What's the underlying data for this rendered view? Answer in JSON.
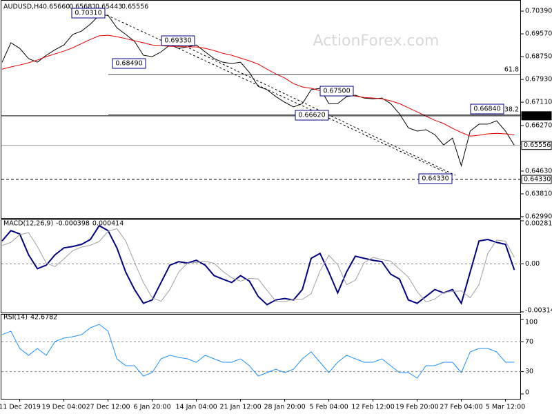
{
  "chart_data": [
    {
      "type": "line",
      "title": "AUDUSD,H4",
      "ohlc": [
        "0.65660",
        "0.65681",
        "0.65443",
        "0.65556"
      ],
      "watermark": "ActionForex.com",
      "ylim": [
        0.6294,
        0.7074
      ],
      "yticks": [
        {
          "value": 0.7039,
          "label": "0.70390"
        },
        {
          "value": 0.6957,
          "label": "0.69570"
        },
        {
          "value": 0.6875,
          "label": "0.68750"
        },
        {
          "value": 0.6793,
          "label": "0.67930"
        },
        {
          "value": 0.6711,
          "label": "0.67110"
        },
        {
          "value": 0.6627,
          "label": "0.66270"
        },
        {
          "value": 0.6463,
          "label": "0.64630"
        },
        {
          "value": 0.6381,
          "label": "0.63810"
        },
        {
          "value": 0.6299,
          "label": "0.62990"
        }
      ],
      "levels": [
        {
          "value": 0.6662,
          "label": "0.66620"
        },
        {
          "value": 0.65556,
          "label": "0.65556"
        },
        {
          "value": 0.6433,
          "label": "0.64330"
        }
      ],
      "fib": [
        {
          "value": 0.6811,
          "label": "61.8"
        },
        {
          "value": 0.6666,
          "label": "38.2"
        }
      ],
      "annotations": [
        "0.70310",
        "0.68490",
        "0.69330",
        "0.66620",
        "0.67500",
        "0.64330",
        "0.66840"
      ],
      "series": [
        {
          "color": "#000000",
          "values": [
            0.6855,
            0.6925,
            0.6905,
            0.6868,
            0.6855,
            0.688,
            0.69,
            0.6917,
            0.6955,
            0.6967,
            0.6992,
            0.7024,
            0.7024,
            0.6979,
            0.6955,
            0.693,
            0.688,
            0.6875,
            0.6892,
            0.6917,
            0.6905,
            0.691,
            0.6917,
            0.6892,
            0.6868,
            0.6855,
            0.685,
            0.6855,
            0.6818,
            0.6768,
            0.6756,
            0.6731,
            0.6711,
            0.6694,
            0.6706,
            0.6756,
            0.6761,
            0.6706,
            0.6706,
            0.6731,
            0.6736,
            0.6726,
            0.6723,
            0.6726,
            0.6706,
            0.6669,
            0.6619,
            0.6607,
            0.6612,
            0.6594,
            0.6557,
            0.6582,
            0.6482,
            0.6607,
            0.6632,
            0.6632,
            0.6644,
            0.6607,
            0.65556
          ]
        },
        {
          "color": "#e00000",
          "values": [
            0.683,
            0.6838,
            0.6845,
            0.6853,
            0.6863,
            0.6875,
            0.6885,
            0.6895,
            0.6907,
            0.6922,
            0.6937,
            0.695,
            0.6952,
            0.6947,
            0.694,
            0.6932,
            0.6925,
            0.6917,
            0.6915,
            0.6912,
            0.6912,
            0.691,
            0.691,
            0.6905,
            0.6897,
            0.6887,
            0.688,
            0.687,
            0.686,
            0.6848,
            0.683,
            0.6813,
            0.6798,
            0.6778,
            0.6766,
            0.6761,
            0.6753,
            0.6748,
            0.6743,
            0.6738,
            0.6733,
            0.6728,
            0.6726,
            0.6723,
            0.6716,
            0.6706,
            0.6691,
            0.6676,
            0.6661,
            0.6646,
            0.6634,
            0.6617,
            0.6602,
            0.6589,
            0.6592,
            0.6597,
            0.6599,
            0.6597,
            0.6594
          ]
        }
      ]
    },
    {
      "type": "line",
      "title": "MACD(12,26,9)",
      "readout": [
        "-0.000398",
        "0.000414"
      ],
      "ylim": [
        -0.003141,
        0.00281
      ],
      "yticks": [
        0.00281,
        {
          "value": 0,
          "label": "0.00"
        },
        -0.003141
      ],
      "series": [
        {
          "color": "#000080",
          "values": [
            0.00149,
            0.00217,
            0.00195,
            0.00059,
            -0.00032,
            -9e-05,
            0.00059,
            0.00104,
            0.00113,
            0.00127,
            0.00159,
            0.00249,
            0.00217,
            0.00104,
            -0.00054,
            -0.00168,
            -0.00258,
            -0.00236,
            -0.00122,
            -9e-05,
            0.00014,
            5e-05,
            0.00023,
            -9e-05,
            -0.00077,
            -0.001,
            -0.00122,
            -0.00077,
            -0.00113,
            -0.00213,
            -0.00267,
            -0.00236,
            -0.00227,
            -0.00236,
            -0.00168,
            0.00036,
            0.00068,
            -0.00054,
            -0.0019,
            -0.00054,
            0.0005,
            0.00036,
            0.00023,
            0.00014,
            -0.00068,
            -0.001,
            -0.00236,
            -0.00258,
            -0.00213,
            -0.00168,
            -0.0019,
            -0.00168,
            -0.00258,
            -0.00054,
            0.00149,
            0.00159,
            0.0014,
            0.00127,
            -0.000398
          ]
        },
        {
          "color": "#a0a0a0",
          "values": [
            0.0012,
            0.0014,
            0.0019,
            0.00204,
            0.00113,
            5e-05,
            -0.00018,
            0.00032,
            0.00086,
            0.00109,
            0.00121,
            0.00146,
            0.00213,
            0.0023,
            0.00149,
            9e-05,
            -0.00122,
            -0.00222,
            -0.00245,
            -0.00168,
            -0.00054,
            5e-05,
            9e-05,
            0.00016,
            4e-05,
            -0.0005,
            -0.00091,
            -0.00113,
            -0.00095,
            -0.00099,
            -0.00173,
            -0.00245,
            -0.00248,
            -0.00231,
            -0.00232,
            -0.00195,
            -0.00046,
            0.00055,
            -5e-05,
            -0.00136,
            -0.00108,
            8e-05,
            0.00042,
            0.00028,
            0.00017,
            -0.00035,
            -0.00087,
            -0.00182,
            -0.00249,
            -0.00231,
            -0.00186,
            -0.00181,
            -0.00177,
            -0.00222,
            -0.00136,
            0.00068,
            0.00155,
            0.00148,
            0.000414
          ]
        }
      ]
    },
    {
      "type": "line",
      "title": "RSI(14)",
      "readout": [
        "42.6782"
      ],
      "ylim": [
        0,
        100
      ],
      "yticks": [
        100,
        70,
        30,
        0
      ],
      "categories": [
        null,
        null,
        "11 Dec 2019",
        null,
        null,
        null,
        null,
        "19 Dec 04:00",
        null,
        null,
        null,
        null,
        "27 Dec 12:00",
        null,
        null,
        null,
        null,
        "6 Jan 20:00",
        null,
        null,
        null,
        null,
        "14 Jan 04:00",
        null,
        null,
        null,
        null,
        "21 Jan 12:00",
        null,
        null,
        null,
        null,
        "28 Jan 20:00",
        null,
        null,
        null,
        null,
        "5 Feb 04:00",
        null,
        null,
        null,
        null,
        "12 Feb 12:00",
        null,
        null,
        null,
        null,
        "19 Feb 20:00",
        null,
        null,
        null,
        null,
        "27 Feb 04:00",
        null,
        null,
        null,
        null,
        "5 Mar 12:00",
        null
      ],
      "series": [
        {
          "color": "#1e90ff",
          "values": [
            79.6,
            84.3,
            61.1,
            51.9,
            61.1,
            51.9,
            70.4,
            75,
            76.9,
            79.6,
            88.9,
            93.5,
            84.3,
            47.2,
            38,
            38,
            24.1,
            28.7,
            47.2,
            51.9,
            49.1,
            47.2,
            42.6,
            51.9,
            47.2,
            42.6,
            42.6,
            47.2,
            38,
            24.1,
            28.7,
            33.3,
            28.7,
            33.3,
            47.2,
            56.5,
            42.6,
            28.7,
            42.6,
            51.9,
            47.2,
            42.6,
            42.6,
            47.2,
            38,
            28.7,
            28.7,
            21.3,
            38,
            38,
            42.6,
            42.6,
            28.7,
            56.5,
            61.1,
            61.1,
            56.5,
            42.6,
            42.6782
          ]
        }
      ]
    }
  ]
}
